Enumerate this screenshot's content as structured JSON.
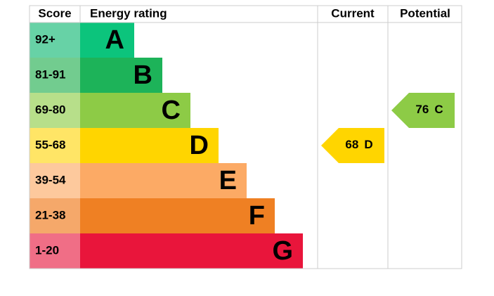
{
  "header": {
    "score": "Score",
    "rating": "Energy rating",
    "current": "Current",
    "potential": "Potential"
  },
  "bands": [
    {
      "score": "92+",
      "letter": "A",
      "color": "#0cc47c",
      "score_color": "#67d2a6"
    },
    {
      "score": "81-91",
      "letter": "B",
      "color": "#1db359",
      "score_color": "#72cc8f"
    },
    {
      "score": "69-80",
      "letter": "C",
      "color": "#8dcb46",
      "score_color": "#b7df8a"
    },
    {
      "score": "55-68",
      "letter": "D",
      "color": "#ffd500",
      "score_color": "#ffe566"
    },
    {
      "score": "39-54",
      "letter": "E",
      "color": "#fcaa65",
      "score_color": "#fdc99d"
    },
    {
      "score": "21-38",
      "letter": "F",
      "color": "#ef8023",
      "score_color": "#f5a86a"
    },
    {
      "score": "1-20",
      "letter": "G",
      "color": "#e9153b",
      "score_color": "#f06e86"
    }
  ],
  "current": {
    "value": 68,
    "rating": "D"
  },
  "potential": {
    "value": 76,
    "rating": "C"
  }
}
